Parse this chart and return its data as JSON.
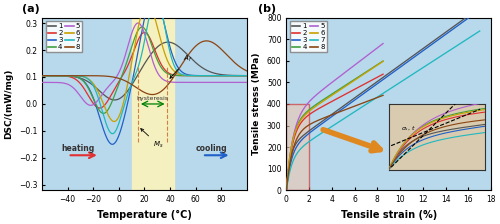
{
  "fig_width": 5.0,
  "fig_height": 2.24,
  "dpi": 100,
  "bg_color": "#b8d8eb",
  "highlight_color": "#f5f0c0",
  "colors": [
    "#555555",
    "#e03030",
    "#2060c8",
    "#40a040",
    "#b060d0",
    "#c8a000",
    "#20b8c0",
    "#8B4513"
  ],
  "labels": [
    "1",
    "2",
    "3",
    "4",
    "5",
    "6",
    "7",
    "8"
  ],
  "dsc_xlabel": "Temperature (°C)",
  "dsc_ylabel": "DSC/(mW/mg)",
  "ss_xlabel": "Tensile strain (%)",
  "ss_ylabel": "Tensile stress (MPa)",
  "dsc_xlim": [
    -60,
    100
  ],
  "dsc_ylim": [
    -0.32,
    0.32
  ],
  "ss_xlim": [
    0,
    18
  ],
  "ss_ylim": [
    0,
    800
  ],
  "panel_a_label": "(a)",
  "panel_b_label": "(b)",
  "dsc_xticks": [
    -40,
    -20,
    0,
    20,
    40,
    60,
    80
  ],
  "dsc_yticks": [
    -0.3,
    -0.2,
    -0.1,
    0.0,
    0.1,
    0.2,
    0.3
  ],
  "ss_xticks": [
    0,
    2,
    4,
    6,
    8,
    10,
    12,
    14,
    16,
    18
  ],
  "ss_yticks": [
    0,
    100,
    200,
    300,
    400,
    500,
    600,
    700,
    800
  ]
}
